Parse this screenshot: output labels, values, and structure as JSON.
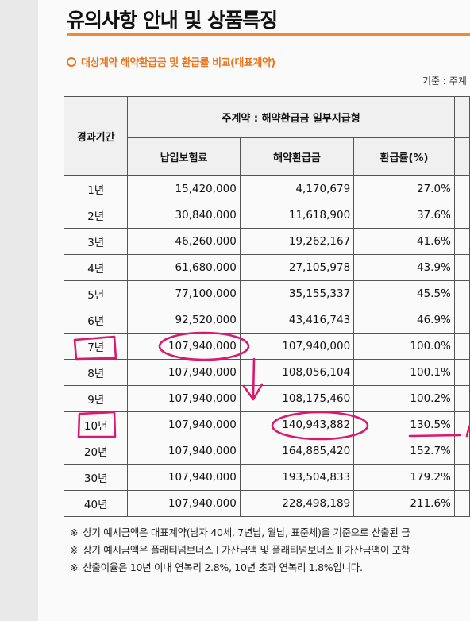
{
  "title": "유의사항 안내 및 상품특징",
  "subtitle": "대상계약 해약환급금 및 환급률 비교(대표계약)",
  "basis": "기준 : 주계",
  "table": {
    "period_header": "경과기간",
    "group_header": "주계약 : 해약환급금 일부지급형",
    "columns": [
      "납입보험료",
      "해약환급금",
      "환급률(%)"
    ],
    "rows": [
      {
        "period": "1년",
        "premium": "15,420,000",
        "refund": "4,170,679",
        "rate": "27.0%"
      },
      {
        "period": "2년",
        "premium": "30,840,000",
        "refund": "11,618,900",
        "rate": "37.6%"
      },
      {
        "period": "3년",
        "premium": "46,260,000",
        "refund": "19,262,167",
        "rate": "41.6%"
      },
      {
        "period": "4년",
        "premium": "61,680,000",
        "refund": "27,105,978",
        "rate": "43.9%"
      },
      {
        "period": "5년",
        "premium": "77,100,000",
        "refund": "35,155,337",
        "rate": "45.5%"
      },
      {
        "period": "6년",
        "premium": "92,520,000",
        "refund": "43,416,743",
        "rate": "46.9%"
      },
      {
        "period": "7년",
        "premium": "107,940,000",
        "refund": "107,940,000",
        "rate": "100.0%"
      },
      {
        "period": "8년",
        "premium": "107,940,000",
        "refund": "108,056,104",
        "rate": "100.1%"
      },
      {
        "period": "9년",
        "premium": "107,940,000",
        "refund": "108,175,460",
        "rate": "100.2%"
      },
      {
        "period": "10년",
        "premium": "107,940,000",
        "refund": "140,943,882",
        "rate": "130.5%"
      },
      {
        "period": "20년",
        "premium": "107,940,000",
        "refund": "164,885,420",
        "rate": "152.7%"
      },
      {
        "period": "30년",
        "premium": "107,940,000",
        "refund": "193,504,833",
        "rate": "179.2%"
      },
      {
        "period": "40년",
        "premium": "107,940,000",
        "refund": "228,498,189",
        "rate": "211.6%"
      }
    ]
  },
  "notes": {
    "mark": "※",
    "lines": [
      "상기 예시금액은 대표계약(남자 40세, 7년납, 월납, 표준체)을 기준으로 산출된 금",
      "상기 예시금액은 플래티넘보너스 Ⅰ 가산금액 및 플래티넘보너스 Ⅱ 가산금액이 포함",
      "산출이율은 10년 이내 연복리 2.8%, 10년 초과 연복리 1.8%입니다."
    ]
  },
  "ink_color": "#d81b6a"
}
